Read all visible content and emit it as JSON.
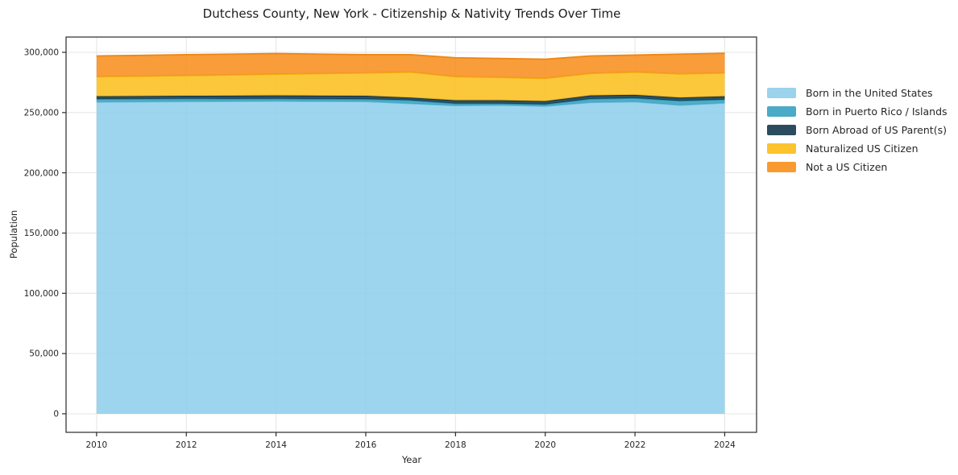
{
  "chart": {
    "title": "Dutchess County, New York - Citizenship & Nativity Trends Over Time",
    "xlabel": "Year",
    "ylabel": "Population"
  },
  "legend": {
    "items": [
      {
        "label": "Born in the United States",
        "color": "#9bd2ec"
      },
      {
        "label": "Born in Puerto Rico / Islands",
        "color": "#4aaac7"
      },
      {
        "label": "Born Abroad of US Parent(s)",
        "color": "#2a4c5e"
      },
      {
        "label": "Naturalized US Citizen",
        "color": "#fcc32d"
      },
      {
        "label": "Not a US Citizen",
        "color": "#f89a30"
      }
    ]
  },
  "chart_data": {
    "type": "area",
    "stacked": true,
    "title": "Dutchess County, New York - Citizenship & Nativity Trends Over Time",
    "xlabel": "Year",
    "ylabel": "Population",
    "x": [
      2010,
      2011,
      2012,
      2013,
      2014,
      2015,
      2016,
      2017,
      2018,
      2019,
      2020,
      2021,
      2022,
      2023,
      2024
    ],
    "series": [
      {
        "name": "Born in the United States",
        "color": "#8ecfea",
        "edge": "#70b8d8",
        "values": [
          258800,
          259000,
          259200,
          259300,
          259500,
          259300,
          259200,
          257500,
          255800,
          256200,
          255300,
          258400,
          259000,
          256200,
          258000
        ]
      },
      {
        "name": "Born in Puerto Rico / Islands",
        "color": "#35a3c2",
        "edge": "#2b93b0",
        "values": [
          2400,
          2350,
          2300,
          2150,
          2000,
          2000,
          2000,
          2700,
          1700,
          1300,
          1500,
          2900,
          3000,
          3500,
          2800
        ]
      },
      {
        "name": "Born Abroad of US Parent(s)",
        "color": "#12394d",
        "edge": "#0e2f40",
        "values": [
          2300,
          2350,
          2400,
          2550,
          2700,
          2700,
          2700,
          2200,
          2700,
          2700,
          2700,
          2900,
          2700,
          2700,
          2700
        ]
      },
      {
        "name": "Naturalized US Citizen",
        "color": "#fcc020",
        "edge": "#f2ae0e",
        "values": [
          16300,
          16500,
          16800,
          17200,
          17700,
          18400,
          19000,
          21200,
          19600,
          19000,
          18900,
          18300,
          18900,
          19700,
          19400
        ]
      },
      {
        "name": "Not a US Citizen",
        "color": "#f78f1e",
        "edge": "#ee8512",
        "values": [
          17200,
          17300,
          17400,
          17300,
          17100,
          16100,
          15200,
          14500,
          15700,
          15700,
          15900,
          14500,
          14100,
          16400,
          16300
        ]
      }
    ],
    "x_ticks": [
      "2010",
      "2012",
      "2014",
      "2016",
      "2018",
      "2020",
      "2022",
      "2024"
    ],
    "y_ticks": [
      "0",
      "50,000",
      "100,000",
      "150,000",
      "200,000",
      "250,000",
      "300,000"
    ],
    "xlim": [
      2009.32,
      2024.71
    ],
    "ylim": [
      -15400,
      312700
    ],
    "grid": true,
    "legend_position": "right",
    "grid_color": "#e4e4e4",
    "spine_color": "#2a2a2a",
    "tick_label_color": "#262626",
    "fill_opacity": 0.88
  }
}
